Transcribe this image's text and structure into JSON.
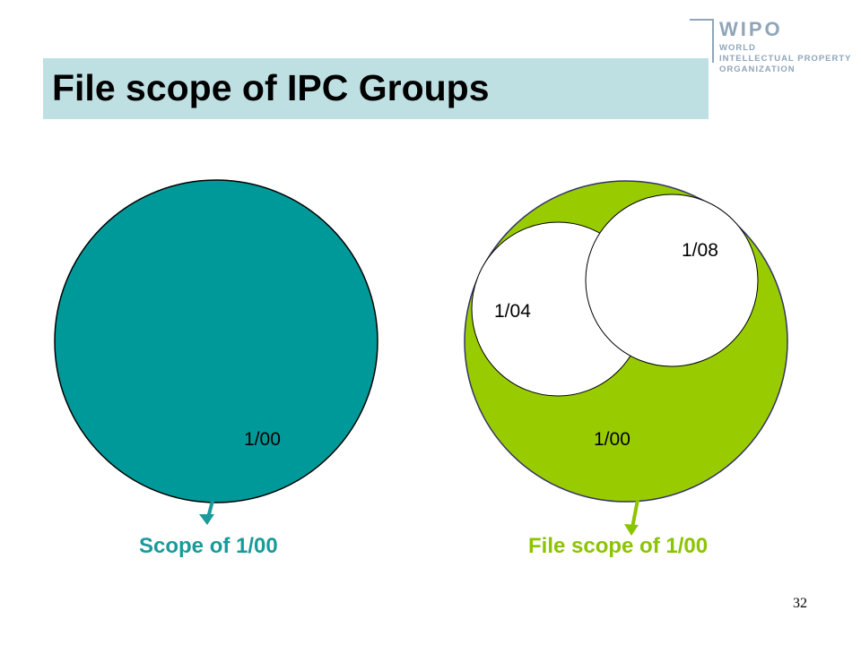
{
  "slide": {
    "title": "File scope of IPC Groups",
    "page_number": "32"
  },
  "logo": {
    "brand": "WIPO",
    "lines": [
      "WORLD",
      "INTELLECTUAL PROPERTY",
      "ORGANIZATION"
    ],
    "color": "#8fa6b9",
    "icon": "wipo-emblem-icon"
  },
  "colors": {
    "title_bar": "#bfe0e3",
    "teal": "#009999",
    "green": "#99cc00",
    "arrow_teal": "#1a9a9a",
    "arrow_green": "#8bc400"
  },
  "diagram": {
    "left_circle": {
      "label": "1/00"
    },
    "right_circle": {
      "label": "1/00",
      "sub_groups": [
        {
          "label": "1/04"
        },
        {
          "label": "1/08"
        }
      ]
    },
    "left_caption": "Scope of 1/00",
    "right_caption": "File scope of 1/00"
  }
}
